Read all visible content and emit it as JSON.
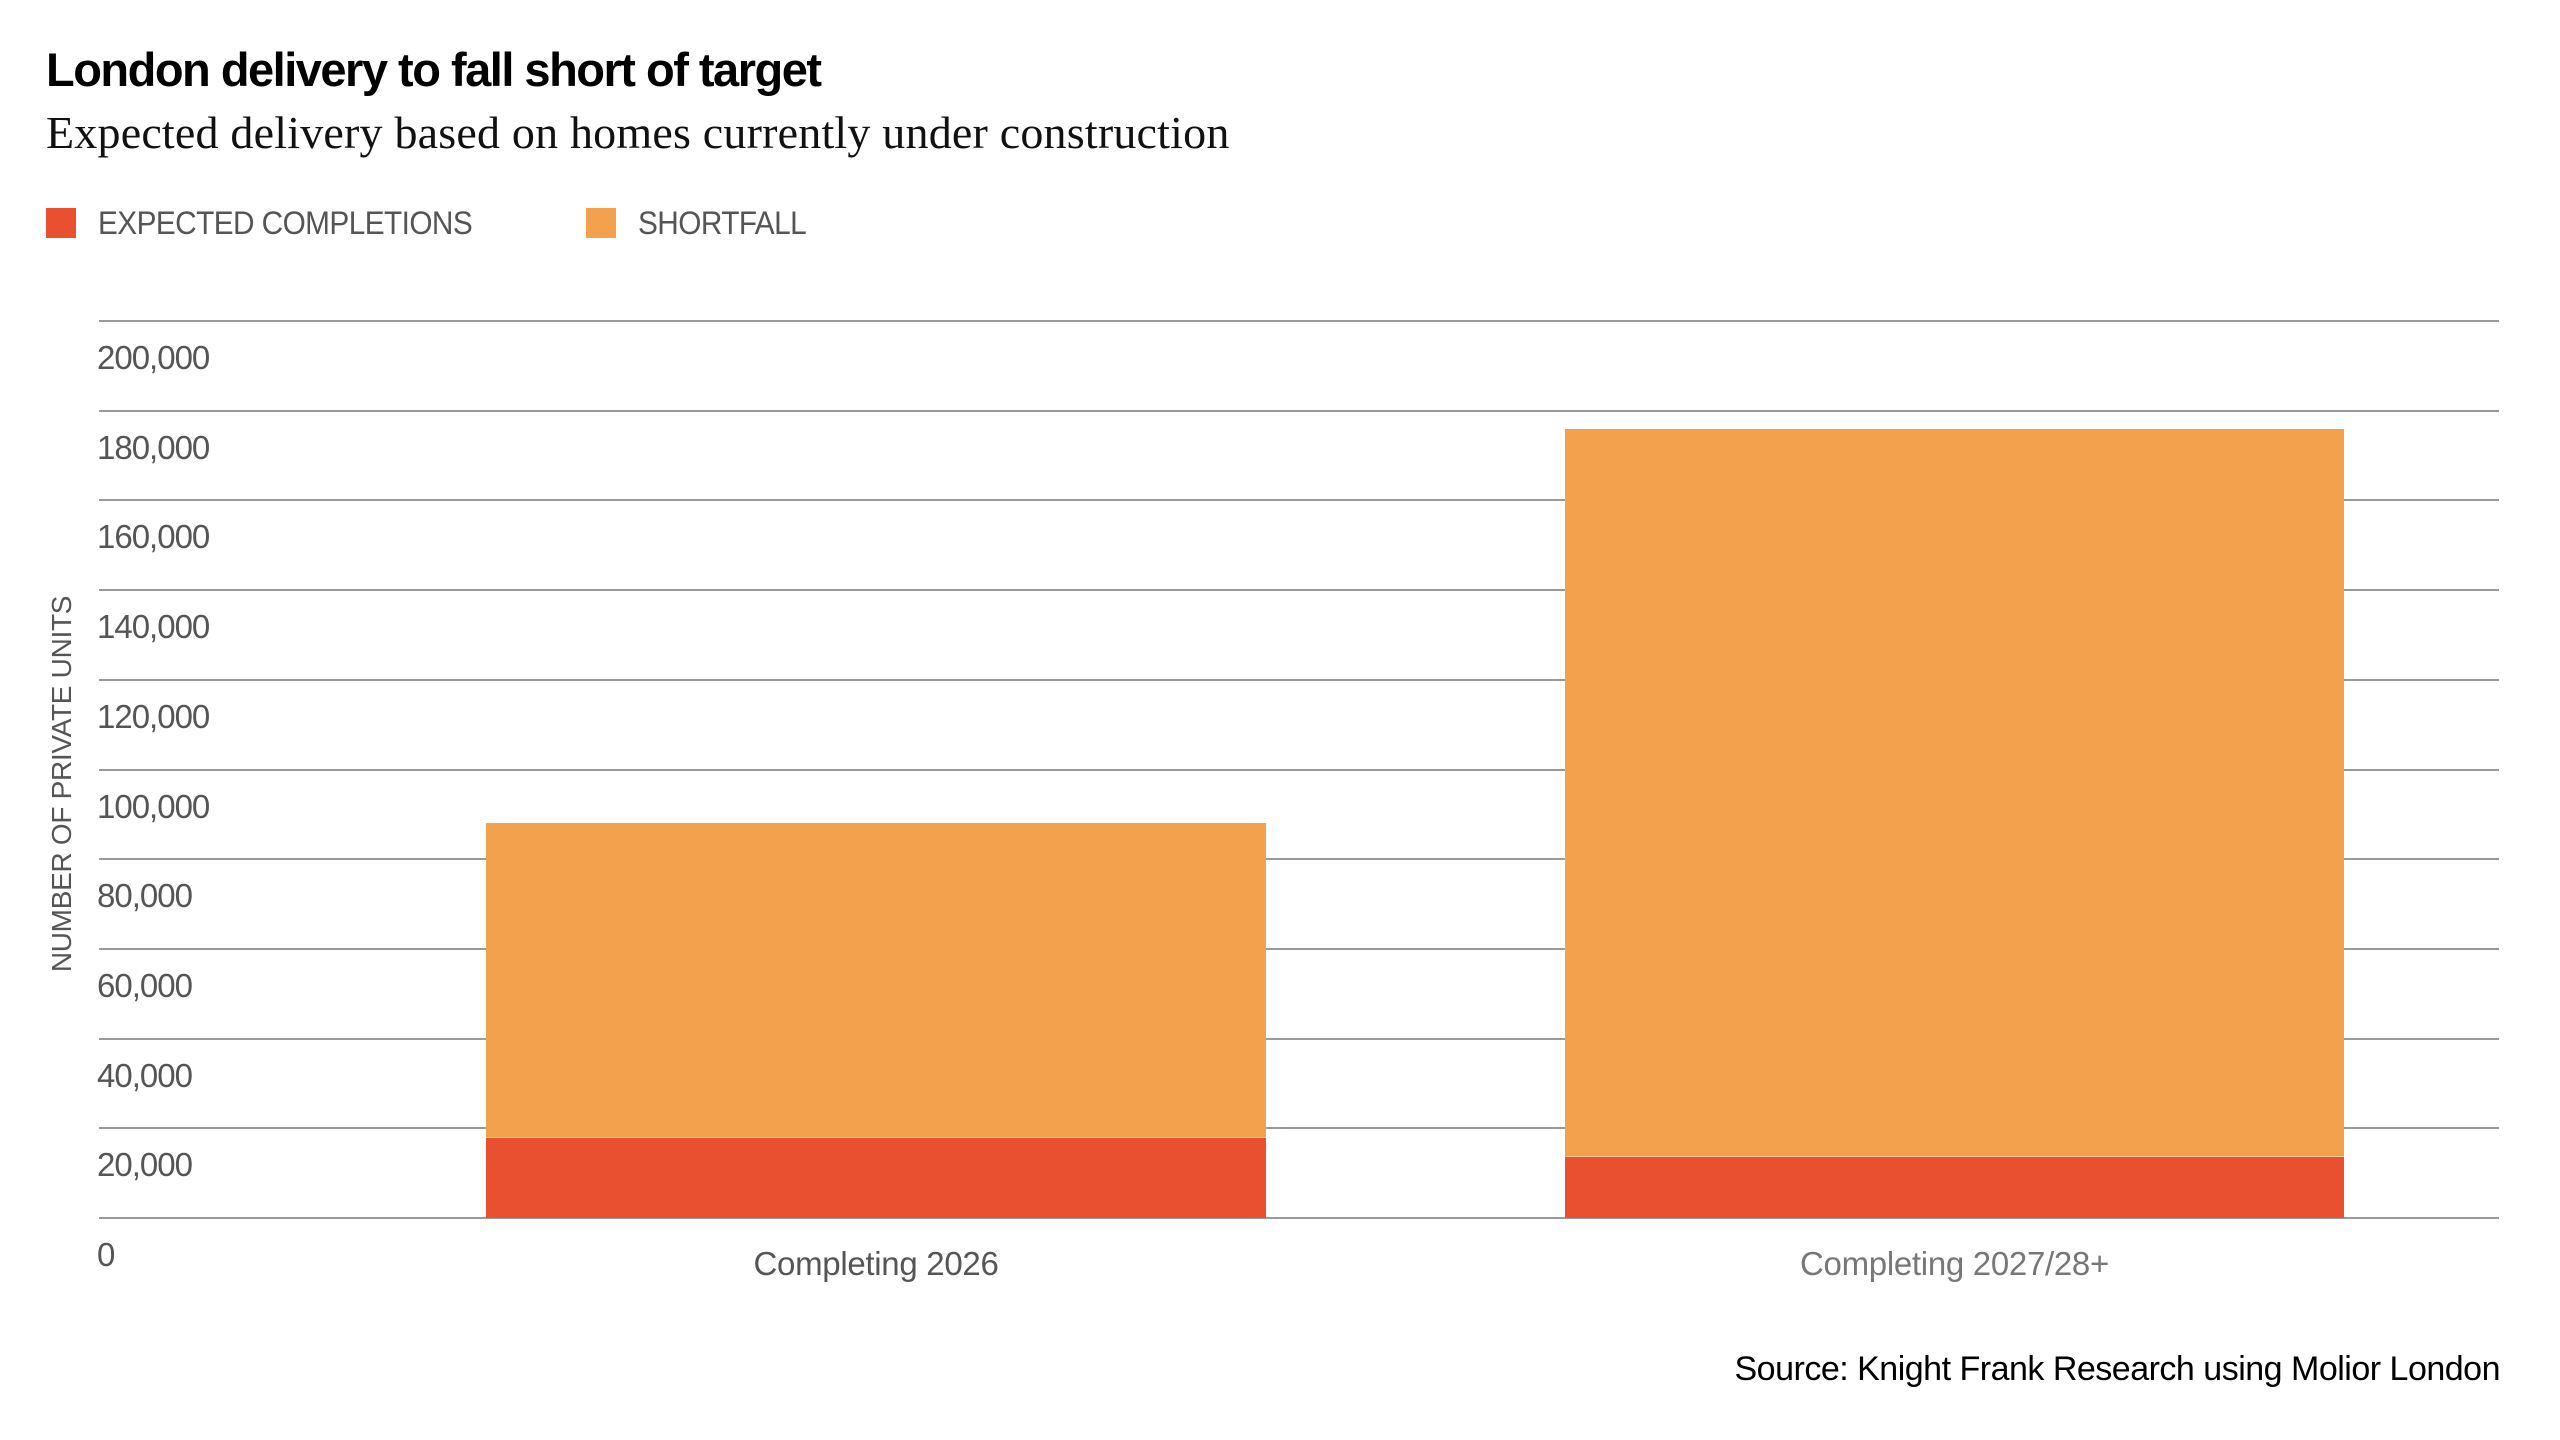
{
  "header": {
    "title": "London delivery to fall short of target",
    "subtitle": "Expected delivery based on homes currently under construction"
  },
  "legend": [
    {
      "label": "EXPECTED COMPLETIONS",
      "color": "#E8502F"
    },
    {
      "label": "SHORTFALL",
      "color": "#F4A14D"
    }
  ],
  "axis": {
    "ylabel": "NUMBER OF PRIVATE UNITS",
    "yticks": [
      "0",
      "20,000",
      "40,000",
      "60,000",
      "80,000",
      "100,000",
      "120,000",
      "140,000",
      "160,000",
      "180,000",
      "200,000"
    ],
    "categories": [
      "Completing 2026",
      "Completing 2027/28+"
    ]
  },
  "footer": {
    "source": "Source: Knight Frank Research using Molior London"
  },
  "chart_data": {
    "type": "bar",
    "stacked": true,
    "title": "London delivery to fall short of target",
    "subtitle": "Expected delivery based on homes currently under construction",
    "categories": [
      "Completing 2026",
      "Completing 2027/28+"
    ],
    "series": [
      {
        "name": "EXPECTED COMPLETIONS",
        "color": "#E8502F",
        "values": [
          18000,
          14000
        ]
      },
      {
        "name": "SHORTFALL",
        "color": "#F4A14D",
        "values": [
          70000,
          162000
        ]
      }
    ],
    "totals": [
      88000,
      176000
    ],
    "xlabel": "",
    "ylabel": "NUMBER OF PRIVATE UNITS",
    "ylim": [
      0,
      200000
    ],
    "ytick_step": 20000,
    "grid": true,
    "legend_position": "top-left",
    "source": "Source: Knight Frank Research using Molior London"
  }
}
